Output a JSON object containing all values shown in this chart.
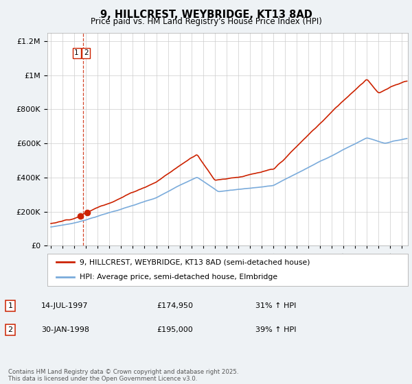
{
  "title1": "9, HILLCREST, WEYBRIDGE, KT13 8AD",
  "title2": "Price paid vs. HM Land Registry's House Price Index (HPI)",
  "legend_line1": "9, HILLCREST, WEYBRIDGE, KT13 8AD (semi-detached house)",
  "legend_line2": "HPI: Average price, semi-detached house, Elmbridge",
  "sale1_label": "1",
  "sale2_label": "2",
  "sale1_date": "14-JUL-1997",
  "sale1_price": "£174,950",
  "sale1_hpi": "31% ↑ HPI",
  "sale2_date": "30-JAN-1998",
  "sale2_price": "£195,000",
  "sale2_hpi": "39% ↑ HPI",
  "footnote": "Contains HM Land Registry data © Crown copyright and database right 2025.\nThis data is licensed under the Open Government Licence v3.0.",
  "hpi_color": "#7aabdb",
  "price_color": "#cc2200",
  "dashed_line_color": "#cc2200",
  "background_color": "#eef2f5",
  "plot_bg": "#ffffff",
  "ylim": [
    0,
    1250000
  ],
  "yticks": [
    0,
    200000,
    400000,
    600000,
    800000,
    1000000,
    1200000
  ],
  "xlim_start": 1994.7,
  "xlim_end": 2025.5,
  "sale1_t": 1997.54,
  "sale2_t": 1998.08,
  "sale1_price_val": 174950,
  "sale2_price_val": 195000
}
